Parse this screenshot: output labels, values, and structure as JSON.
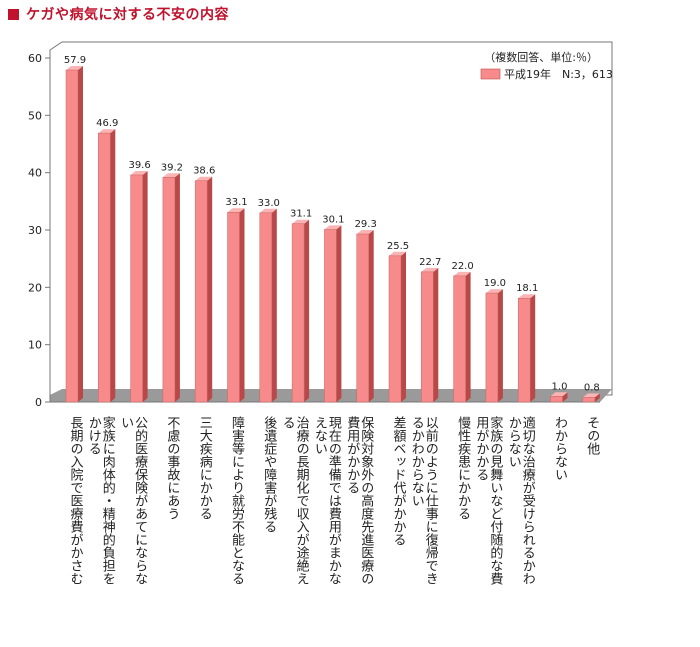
{
  "heading": "ケガや病気に対する不安の内容",
  "chart_data": {
    "type": "bar",
    "title": "",
    "xlabel": "",
    "ylabel": "",
    "ylim": [
      0,
      60
    ],
    "yticks": [
      0,
      10,
      20,
      30,
      40,
      50,
      60
    ],
    "grid": false,
    "legend_position": "top-right",
    "note": "（複数回答、単位:％）",
    "categories": [
      "長期の入院で医療費がかさむ",
      "家族に肉体的・精神的負担をかける",
      "公的医療保険があてにならない",
      "不慮の事故にあう",
      "三大疾病にかかる",
      "障害等により就労不能となる",
      "後遺症や障害が残る",
      "治療の長期化で収入が途絶える",
      "現在の準備では費用がまかなえない",
      "保険対象外の高度先進医療の費用がかかる",
      "差額ベッド代がかかる",
      "以前のように仕事に復帰できるかわからない",
      "慢性疾患にかかる",
      "家族の見舞いなど付随的な費用がかかる",
      "適切な治療が受けられるかわからない",
      "わからない",
      "その他"
    ],
    "series": [
      {
        "name": "平成19年　N:3，613",
        "color": "#f78a8a",
        "values": [
          57.9,
          46.9,
          39.6,
          39.2,
          38.6,
          33.1,
          33.0,
          31.1,
          30.1,
          29.3,
          25.5,
          22.7,
          22.0,
          19.0,
          18.1,
          1.0,
          0.8
        ]
      }
    ],
    "value_labels": [
      "57.9",
      "46.9",
      "39.6",
      "39.2",
      "38.6",
      "33.1",
      "33.0",
      "31.1",
      "30.1",
      "29.3",
      "25.5",
      "22.7",
      "22.0",
      "19.0",
      "18.1",
      "1.0",
      "0.8"
    ]
  }
}
